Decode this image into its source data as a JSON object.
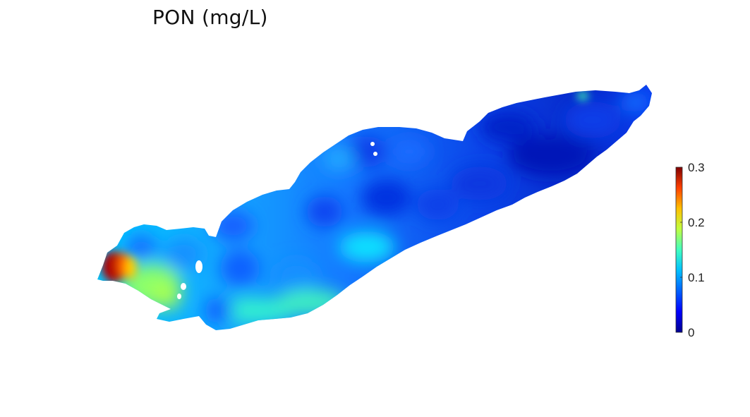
{
  "title": "PON (mg/L)",
  "colorbar": {
    "min": 0,
    "max": 0.3,
    "ticks": [
      {
        "value": 0,
        "label": "0"
      },
      {
        "value": 0.1,
        "label": "0.1"
      },
      {
        "value": 0.2,
        "label": "0.2"
      },
      {
        "value": 0.3,
        "label": "0.3"
      }
    ],
    "colormap": [
      "#00008f",
      "#0000ff",
      "#0080ff",
      "#00ffff",
      "#80ff80",
      "#ffff00",
      "#ff8000",
      "#ff0000",
      "#800000"
    ]
  },
  "map": {
    "region": "lake",
    "background_color": "#0a5fe6"
  }
}
